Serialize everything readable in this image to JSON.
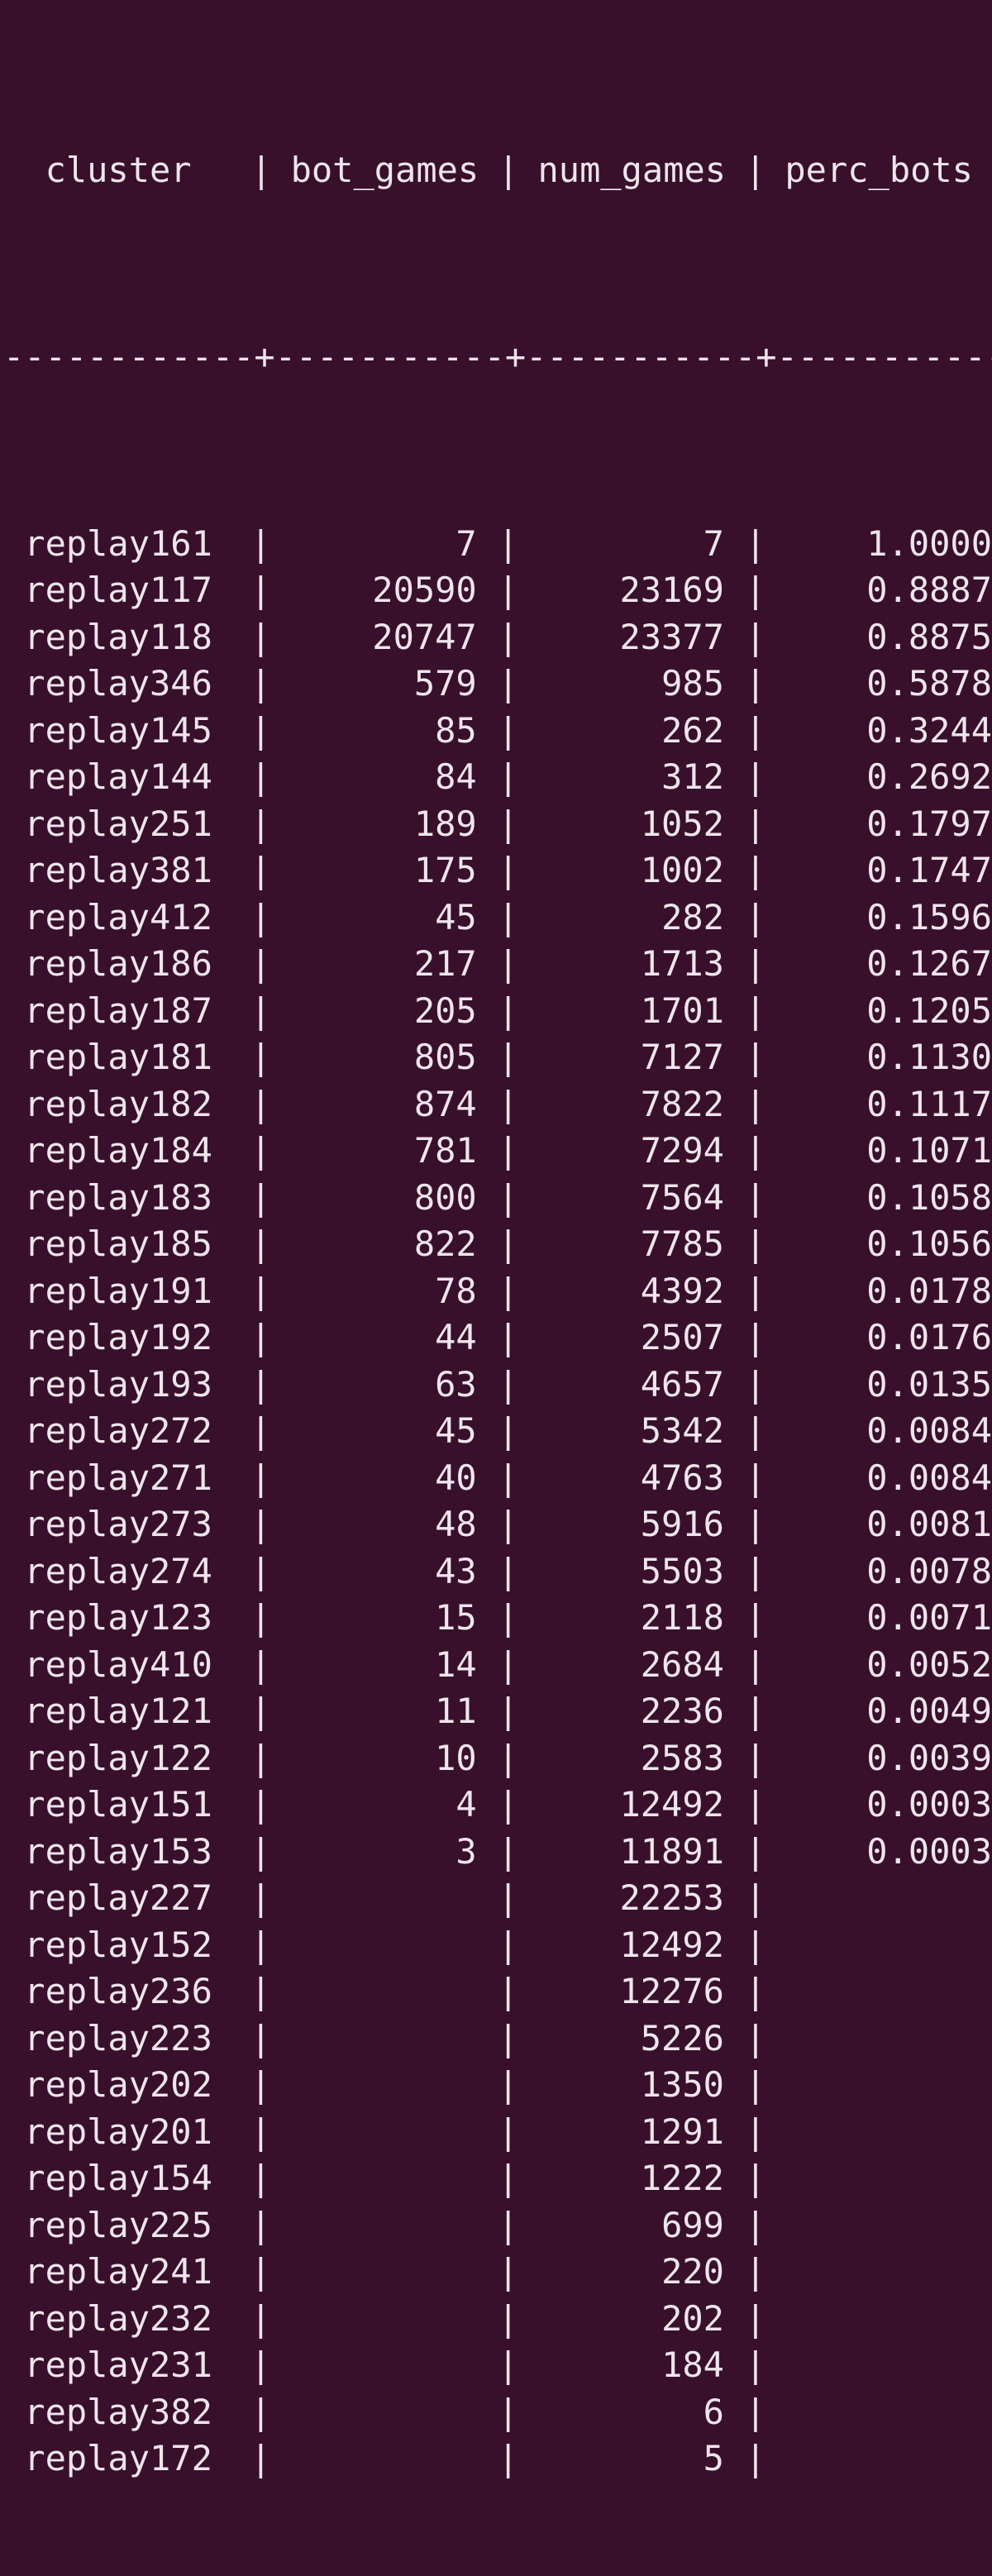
{
  "colors": {
    "background": "#38102b",
    "text": "#efe5ec"
  },
  "terminal": {
    "pipe": "|",
    "separator": "------------+-----------+-----------+-----------",
    "columns": [
      "cluster",
      "bot_games",
      "num_games",
      "perc_bots"
    ],
    "rows": [
      [
        "replay161",
        "7",
        "7",
        "1.0000"
      ],
      [
        "replay117",
        "20590",
        "23169",
        "0.8887"
      ],
      [
        "replay118",
        "20747",
        "23377",
        "0.8875"
      ],
      [
        "replay346",
        "579",
        "985",
        "0.5878"
      ],
      [
        "replay145",
        "85",
        "262",
        "0.3244"
      ],
      [
        "replay144",
        "84",
        "312",
        "0.2692"
      ],
      [
        "replay251",
        "189",
        "1052",
        "0.1797"
      ],
      [
        "replay381",
        "175",
        "1002",
        "0.1747"
      ],
      [
        "replay412",
        "45",
        "282",
        "0.1596"
      ],
      [
        "replay186",
        "217",
        "1713",
        "0.1267"
      ],
      [
        "replay187",
        "205",
        "1701",
        "0.1205"
      ],
      [
        "replay181",
        "805",
        "7127",
        "0.1130"
      ],
      [
        "replay182",
        "874",
        "7822",
        "0.1117"
      ],
      [
        "replay184",
        "781",
        "7294",
        "0.1071"
      ],
      [
        "replay183",
        "800",
        "7564",
        "0.1058"
      ],
      [
        "replay185",
        "822",
        "7785",
        "0.1056"
      ],
      [
        "replay191",
        "78",
        "4392",
        "0.0178"
      ],
      [
        "replay192",
        "44",
        "2507",
        "0.0176"
      ],
      [
        "replay193",
        "63",
        "4657",
        "0.0135"
      ],
      [
        "replay272",
        "45",
        "5342",
        "0.0084"
      ],
      [
        "replay271",
        "40",
        "4763",
        "0.0084"
      ],
      [
        "replay273",
        "48",
        "5916",
        "0.0081"
      ],
      [
        "replay274",
        "43",
        "5503",
        "0.0078"
      ],
      [
        "replay123",
        "15",
        "2118",
        "0.0071"
      ],
      [
        "replay410",
        "14",
        "2684",
        "0.0052"
      ],
      [
        "replay121",
        "11",
        "2236",
        "0.0049"
      ],
      [
        "replay122",
        "10",
        "2583",
        "0.0039"
      ],
      [
        "replay151",
        "4",
        "12492",
        "0.0003"
      ],
      [
        "replay153",
        "3",
        "11891",
        "0.0003"
      ],
      [
        "replay227",
        "",
        "22253",
        ""
      ],
      [
        "replay152",
        "",
        "12492",
        ""
      ],
      [
        "replay236",
        "",
        "12276",
        ""
      ],
      [
        "replay223",
        "",
        "5226",
        ""
      ],
      [
        "replay202",
        "",
        "1350",
        ""
      ],
      [
        "replay201",
        "",
        "1291",
        ""
      ],
      [
        "replay154",
        "",
        "1222",
        ""
      ],
      [
        "replay225",
        "",
        "699",
        ""
      ],
      [
        "replay241",
        "",
        "220",
        ""
      ],
      [
        "replay232",
        "",
        "202",
        ""
      ],
      [
        "replay231",
        "",
        "184",
        ""
      ],
      [
        "replay382",
        "",
        "6",
        ""
      ],
      [
        "replay172",
        "",
        "5",
        ""
      ]
    ]
  }
}
